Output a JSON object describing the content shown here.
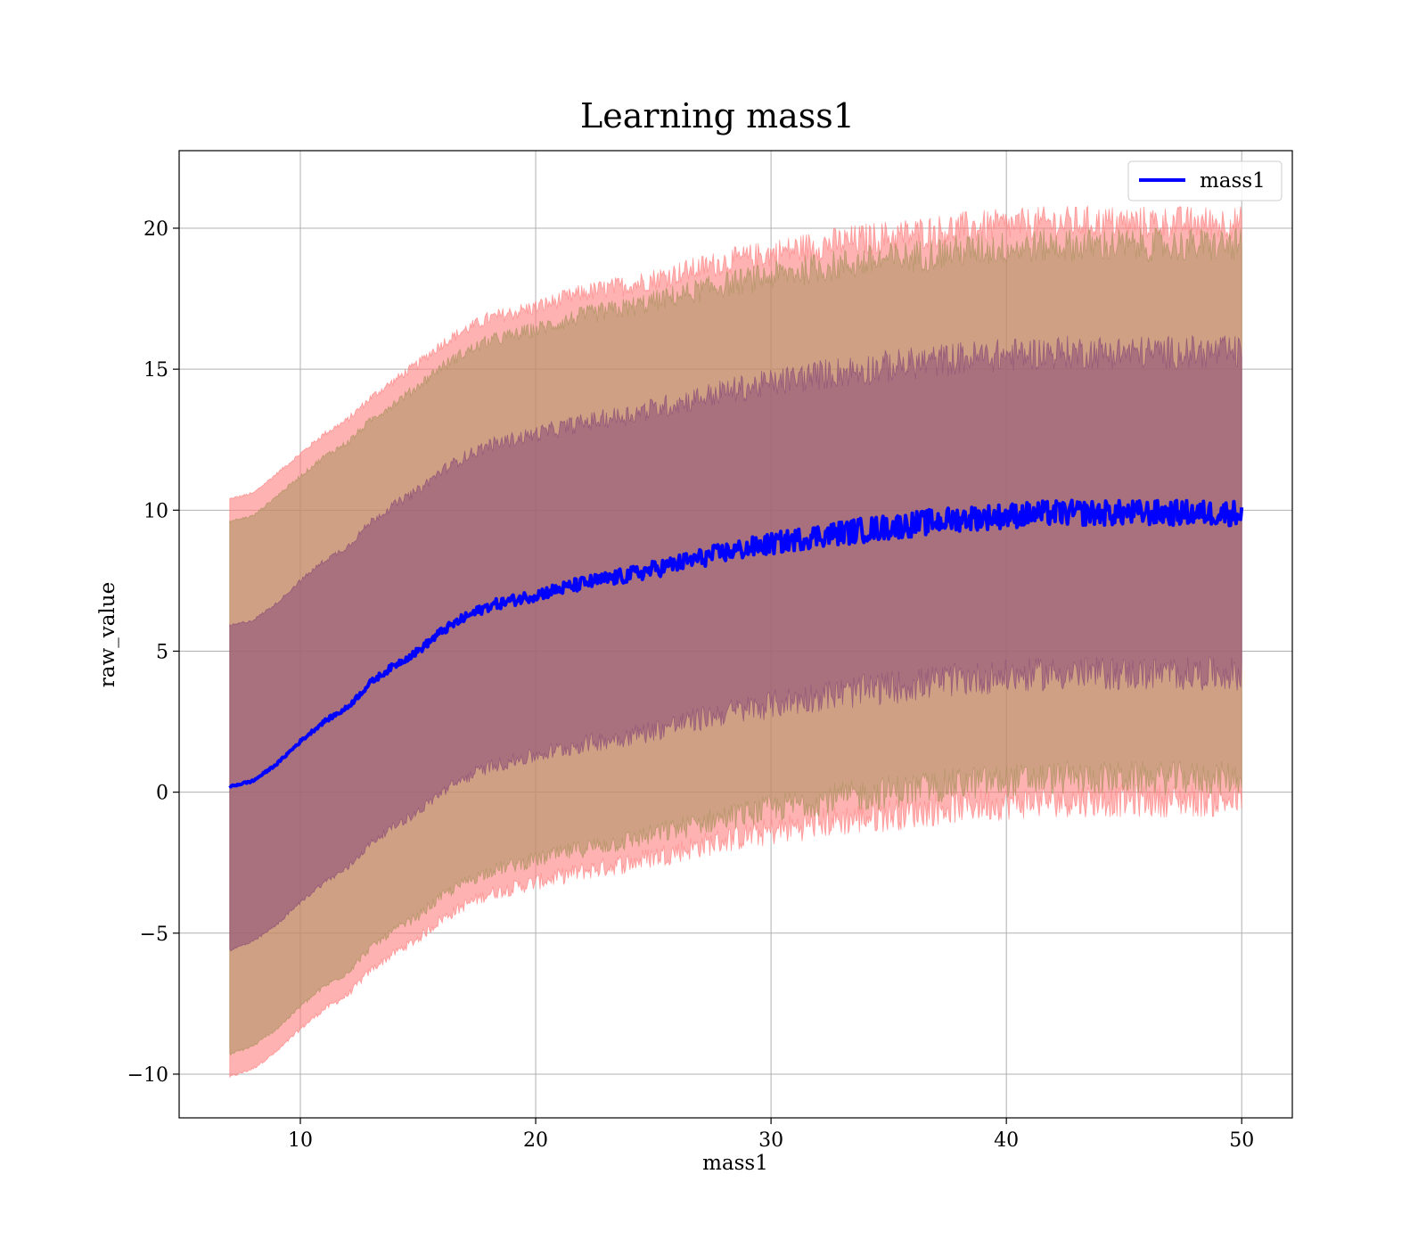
{
  "chart_data": {
    "type": "line",
    "title": "Learning mass1",
    "xlabel": "mass1",
    "ylabel": "raw_value",
    "xlim": [
      4.85,
      52.15
    ],
    "ylim": [
      -11.55,
      22.75
    ],
    "xticks": [
      10,
      20,
      30,
      40,
      50
    ],
    "xtick_labels": [
      "10",
      "20",
      "30",
      "40",
      "50"
    ],
    "yticks": [
      -10,
      -5,
      0,
      5,
      10,
      15,
      20
    ],
    "ytick_labels": [
      "−10",
      "−5",
      "0",
      "5",
      "10",
      "15",
      "20"
    ],
    "grid": true,
    "legend": {
      "position": "top-right",
      "entries": [
        "mass1"
      ]
    },
    "colors": {
      "mean_line": "#0000ff",
      "outer_band": "#ff7f7f",
      "middle_band": "#a8925c",
      "inner_band": "#8a4a78"
    },
    "x": [
      7,
      8,
      9,
      10,
      11,
      12,
      13,
      14,
      15,
      16,
      17,
      18,
      19,
      20,
      22,
      24,
      26,
      28,
      30,
      32,
      34,
      36,
      38,
      40,
      42,
      44,
      46,
      48,
      50
    ],
    "series": [
      {
        "name": "mass1",
        "kind": "line",
        "values": [
          0.2,
          0.4,
          1.0,
          1.8,
          2.5,
          3.0,
          3.9,
          4.5,
          5.0,
          5.7,
          6.2,
          6.6,
          6.8,
          7.0,
          7.4,
          7.7,
          8.1,
          8.5,
          8.8,
          9.1,
          9.3,
          9.5,
          9.7,
          9.8,
          9.9,
          9.9,
          9.9,
          9.9,
          9.9
        ]
      },
      {
        "kind": "band",
        "band": "outer",
        "upper": [
          10.4,
          10.6,
          11.3,
          12.0,
          12.7,
          13.2,
          14.0,
          14.6,
          15.2,
          15.9,
          16.4,
          16.8,
          17.0,
          17.2,
          17.7,
          18.0,
          18.4,
          18.8,
          19.1,
          19.4,
          19.6,
          19.8,
          20.0,
          20.1,
          20.2,
          20.2,
          20.2,
          20.2,
          20.2
        ],
        "lower": [
          -10.1,
          -9.8,
          -9.2,
          -8.4,
          -7.7,
          -7.2,
          -6.3,
          -5.7,
          -5.2,
          -4.5,
          -4.0,
          -3.6,
          -3.4,
          -3.2,
          -2.8,
          -2.5,
          -2.1,
          -1.7,
          -1.4,
          -1.1,
          -0.9,
          -0.7,
          -0.5,
          -0.4,
          -0.3,
          -0.3,
          -0.3,
          -0.3,
          -0.3
        ]
      },
      {
        "kind": "band",
        "band": "middle",
        "upper": [
          9.6,
          9.8,
          10.5,
          11.2,
          11.9,
          12.4,
          13.2,
          13.8,
          14.4,
          15.1,
          15.6,
          16.0,
          16.2,
          16.4,
          16.9,
          17.2,
          17.6,
          18.0,
          18.3,
          18.6,
          18.8,
          19.0,
          19.2,
          19.3,
          19.4,
          19.4,
          19.4,
          19.4,
          19.4
        ],
        "lower": [
          -9.3,
          -9.0,
          -8.4,
          -7.6,
          -6.9,
          -6.4,
          -5.5,
          -4.9,
          -4.4,
          -3.7,
          -3.2,
          -2.8,
          -2.6,
          -2.4,
          -2.0,
          -1.7,
          -1.3,
          -0.9,
          -0.6,
          -0.3,
          -0.1,
          0.1,
          0.3,
          0.4,
          0.5,
          0.5,
          0.5,
          0.5,
          0.5
        ]
      },
      {
        "kind": "band",
        "band": "inner",
        "upper": [
          5.9,
          6.1,
          6.7,
          7.5,
          8.2,
          8.7,
          9.6,
          10.2,
          10.7,
          11.4,
          11.9,
          12.3,
          12.5,
          12.7,
          13.1,
          13.4,
          13.8,
          14.2,
          14.5,
          14.8,
          15.0,
          15.2,
          15.4,
          15.5,
          15.6,
          15.6,
          15.6,
          15.6,
          15.6
        ],
        "lower": [
          -5.6,
          -5.3,
          -4.7,
          -3.9,
          -3.2,
          -2.7,
          -1.8,
          -1.2,
          -0.7,
          0.0,
          0.5,
          0.9,
          1.1,
          1.3,
          1.7,
          2.0,
          2.4,
          2.8,
          3.1,
          3.4,
          3.6,
          3.8,
          4.0,
          4.1,
          4.2,
          4.2,
          4.2,
          4.2,
          4.2
        ]
      }
    ]
  }
}
